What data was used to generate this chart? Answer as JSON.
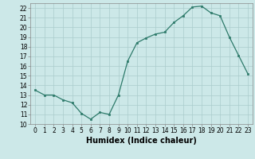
{
  "x": [
    0,
    1,
    2,
    3,
    4,
    5,
    6,
    7,
    8,
    9,
    10,
    11,
    12,
    13,
    14,
    15,
    16,
    17,
    18,
    19,
    20,
    21,
    22,
    23
  ],
  "y": [
    13.5,
    13.0,
    13.0,
    12.5,
    12.2,
    11.1,
    10.5,
    11.2,
    11.0,
    13.0,
    16.5,
    18.4,
    18.9,
    19.3,
    19.5,
    20.5,
    21.2,
    22.1,
    22.2,
    21.5,
    21.2,
    19.0,
    17.1,
    15.2
  ],
  "title": "",
  "xlabel": "Humidex (Indice chaleur)",
  "ylabel": "",
  "xlim": [
    -0.5,
    23.5
  ],
  "ylim": [
    10,
    22.5
  ],
  "line_color": "#2d7a6a",
  "marker_color": "#2d7a6a",
  "bg_color": "#cce8e8",
  "grid_color": "#aacccc",
  "yticks": [
    10,
    11,
    12,
    13,
    14,
    15,
    16,
    17,
    18,
    19,
    20,
    21,
    22
  ],
  "xticks": [
    0,
    1,
    2,
    3,
    4,
    5,
    6,
    7,
    8,
    9,
    10,
    11,
    12,
    13,
    14,
    15,
    16,
    17,
    18,
    19,
    20,
    21,
    22,
    23
  ],
  "tick_labelsize": 5.5,
  "xlabel_fontsize": 7
}
